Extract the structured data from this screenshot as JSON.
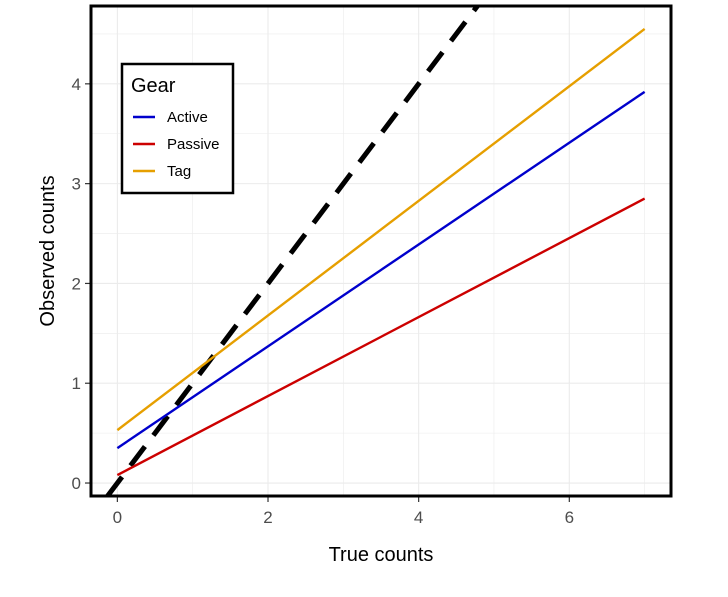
{
  "chart_data": {
    "type": "line",
    "xlabel": "True counts",
    "ylabel": "Observed counts",
    "xlim": [
      -0.35,
      7.35
    ],
    "ylim": [
      -0.13,
      4.78
    ],
    "x_ticks": [
      0,
      2,
      4,
      6
    ],
    "y_ticks": [
      0,
      1,
      2,
      3,
      4
    ],
    "grid": true,
    "legend": {
      "title": "Gear",
      "placement": "top-left"
    },
    "series": [
      {
        "name": "Active",
        "color": "#0000cc",
        "x": [
          0,
          7
        ],
        "y": [
          0.35,
          3.92
        ]
      },
      {
        "name": "Passive",
        "color": "#cc0000",
        "x": [
          0,
          7
        ],
        "y": [
          0.08,
          2.85
        ]
      },
      {
        "name": "Tag",
        "color": "#e69f00",
        "x": [
          0,
          7
        ],
        "y": [
          0.53,
          4.55
        ]
      }
    ],
    "reference_line": {
      "style": "dashed",
      "color": "#000000",
      "slope": 1,
      "intercept": 0
    }
  }
}
